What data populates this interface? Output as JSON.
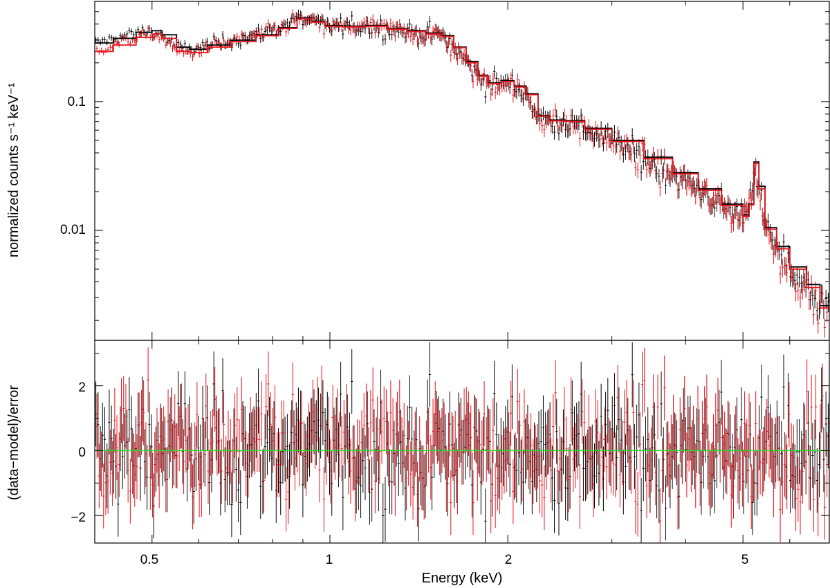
{
  "chart_data": [
    {
      "type": "line",
      "panel": "spectrum",
      "ylabel": "normalized counts s⁻¹ keV⁻¹",
      "x_scale": "log",
      "y_scale": "log",
      "xlim": [
        0.4,
        7.0
      ],
      "ylim": [
        0.0014,
        0.6
      ],
      "y_ticks": [
        {
          "value": 0.1,
          "label": "0.1"
        },
        {
          "value": 0.01,
          "label": "0.01"
        }
      ],
      "series": [
        {
          "color": "#000000",
          "model": [
            [
              0.4,
              0.285
            ],
            [
              0.43,
              0.31
            ],
            [
              0.47,
              0.345
            ],
            [
              0.5,
              0.355
            ],
            [
              0.52,
              0.33
            ],
            [
              0.55,
              0.265
            ],
            [
              0.58,
              0.255
            ],
            [
              0.62,
              0.275
            ],
            [
              0.68,
              0.3
            ],
            [
              0.75,
              0.33
            ],
            [
              0.82,
              0.375
            ],
            [
              0.88,
              0.445
            ],
            [
              0.93,
              0.42
            ],
            [
              0.98,
              0.39
            ],
            [
              1.05,
              0.385
            ],
            [
              1.15,
              0.39
            ],
            [
              1.25,
              0.37
            ],
            [
              1.35,
              0.355
            ],
            [
              1.45,
              0.34
            ],
            [
              1.55,
              0.325
            ],
            [
              1.62,
              0.265
            ],
            [
              1.7,
              0.205
            ],
            [
              1.78,
              0.16
            ],
            [
              1.85,
              0.14
            ],
            [
              1.95,
              0.145
            ],
            [
              2.05,
              0.132
            ],
            [
              2.15,
              0.115
            ],
            [
              2.25,
              0.078
            ],
            [
              2.35,
              0.072
            ],
            [
              2.5,
              0.071
            ],
            [
              2.7,
              0.062
            ],
            [
              3.0,
              0.05
            ],
            [
              3.4,
              0.037
            ],
            [
              3.8,
              0.028
            ],
            [
              4.2,
              0.021
            ],
            [
              4.6,
              0.016
            ],
            [
              5.0,
              0.0132
            ],
            [
              5.12,
              0.016
            ],
            [
              5.22,
              0.034
            ],
            [
              5.32,
              0.022
            ],
            [
              5.45,
              0.0105
            ],
            [
              5.7,
              0.0075
            ],
            [
              6.0,
              0.0052
            ],
            [
              6.4,
              0.0038
            ],
            [
              6.75,
              0.0026
            ],
            [
              7.0,
              0.0026
            ]
          ]
        },
        {
          "color": "#e8141c",
          "model": [
            [
              0.4,
              0.245
            ],
            [
              0.43,
              0.275
            ],
            [
              0.47,
              0.315
            ],
            [
              0.5,
              0.335
            ],
            [
              0.52,
              0.31
            ],
            [
              0.55,
              0.245
            ],
            [
              0.58,
              0.24
            ],
            [
              0.62,
              0.265
            ],
            [
              0.68,
              0.292
            ],
            [
              0.75,
              0.325
            ],
            [
              0.82,
              0.37
            ],
            [
              0.88,
              0.44
            ],
            [
              0.93,
              0.415
            ],
            [
              0.98,
              0.385
            ],
            [
              1.05,
              0.38
            ],
            [
              1.15,
              0.385
            ],
            [
              1.25,
              0.365
            ],
            [
              1.35,
              0.35
            ],
            [
              1.45,
              0.335
            ],
            [
              1.55,
              0.32
            ],
            [
              1.62,
              0.262
            ],
            [
              1.7,
              0.2
            ],
            [
              1.78,
              0.158
            ],
            [
              1.85,
              0.138
            ],
            [
              1.95,
              0.143
            ],
            [
              2.05,
              0.13
            ],
            [
              2.15,
              0.113
            ],
            [
              2.25,
              0.077
            ],
            [
              2.35,
              0.071
            ],
            [
              2.5,
              0.07
            ],
            [
              2.7,
              0.061
            ],
            [
              3.0,
              0.049
            ],
            [
              3.4,
              0.036
            ],
            [
              3.8,
              0.0275
            ],
            [
              4.2,
              0.0205
            ],
            [
              4.6,
              0.0156
            ],
            [
              5.0,
              0.0128
            ],
            [
              5.12,
              0.0158
            ],
            [
              5.22,
              0.033
            ],
            [
              5.32,
              0.021
            ],
            [
              5.45,
              0.0102
            ],
            [
              5.7,
              0.0072
            ],
            [
              6.0,
              0.005
            ],
            [
              6.4,
              0.0036
            ],
            [
              6.75,
              0.0025
            ],
            [
              7.0,
              0.0025
            ]
          ]
        }
      ]
    },
    {
      "type": "scatter",
      "panel": "residuals",
      "xlabel": "Energy (keV)",
      "ylabel": "(data−model)/error",
      "x_scale": "log",
      "xlim": [
        0.4,
        7.0
      ],
      "ylim": [
        -2.85,
        3.4
      ],
      "zero_line": {
        "value": 0,
        "color": "#22dd22"
      },
      "x_ticks": [
        {
          "value": 0.5,
          "label": "0.5"
        },
        {
          "value": 1,
          "label": "1"
        },
        {
          "value": 2,
          "label": "2"
        },
        {
          "value": 5,
          "label": "5"
        }
      ],
      "y_ticks": [
        {
          "value": 2,
          "label": "2"
        },
        {
          "value": 0,
          "label": "0"
        },
        {
          "value": -2,
          "label": "−2"
        }
      ],
      "error_bar_halfwidth_sigma": 1.0,
      "series": [
        {
          "color": "#000000",
          "n_points": 330
        },
        {
          "color": "#e8141c",
          "n_points": 330
        }
      ]
    }
  ]
}
